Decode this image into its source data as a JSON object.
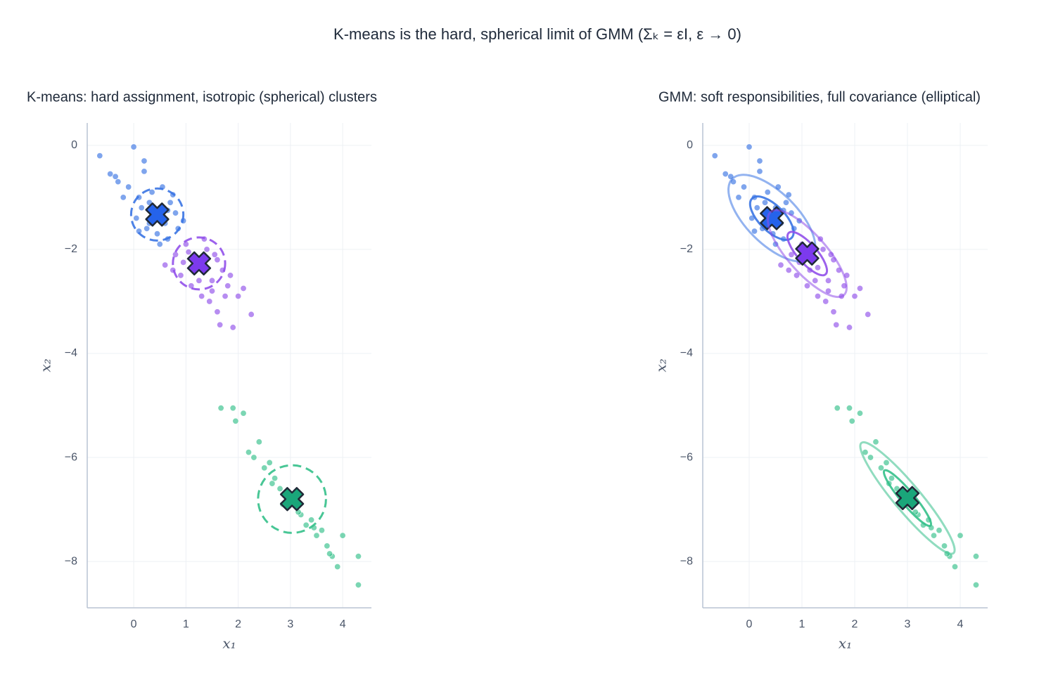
{
  "title": "K-means is the hard, spherical limit of GMM (Σₖ = εI,  ε → 0)",
  "chart_data": [
    {
      "type": "scatter",
      "title": "K-means: hard assignment, isotropic (spherical) clusters",
      "x_label": "x₁",
      "y_label": "x₂",
      "xlim": [
        -0.89,
        4.55
      ],
      "ylim": [
        -8.89,
        0.43
      ],
      "xticks": [
        0,
        1,
        2,
        3,
        4
      ],
      "yticks": [
        {
          "value": -8,
          "label": "−8"
        },
        {
          "value": -6,
          "label": "−6"
        },
        {
          "value": -4,
          "label": "−4"
        },
        {
          "value": -2,
          "label": "−2"
        },
        0
      ],
      "grid": true,
      "series": [
        {
          "color": "#3a74e3",
          "center_color": "#2563eb",
          "center": [
            0.45,
            -1.33
          ],
          "radius": 0.5,
          "x": [
            -0.65,
            -0.45,
            -0.3,
            -0.1,
            0.0,
            0.1,
            0.2,
            0.3,
            0.4,
            0.5,
            0.6,
            0.7,
            0.8,
            -0.2,
            0.05,
            0.25,
            0.45,
            0.65,
            0.85,
            0.35,
            0.15,
            -0.35,
            0.55,
            0.75,
            0.95,
            0.1,
            0.3,
            0.5,
            0.65,
            0.2
          ],
          "y": [
            -0.2,
            -0.55,
            -0.7,
            -0.8,
            -0.03,
            -1.0,
            -0.3,
            -1.1,
            -1.3,
            -1.2,
            -1.5,
            -1.1,
            -1.3,
            -1.0,
            -1.4,
            -1.6,
            -1.7,
            -1.8,
            -1.6,
            -0.9,
            -1.2,
            -0.6,
            -0.8,
            -0.95,
            -1.45,
            -1.65,
            -1.5,
            -1.9,
            -1.25,
            -0.5
          ]
        },
        {
          "color": "#9150ea",
          "center_color": "#7c3aed",
          "center": [
            1.25,
            -2.27
          ],
          "radius": 0.5,
          "x": [
            0.6,
            0.8,
            0.9,
            1.0,
            1.1,
            1.2,
            1.3,
            1.4,
            1.5,
            1.6,
            1.7,
            1.8,
            1.9,
            2.0,
            2.1,
            2.25,
            1.15,
            1.35,
            1.55,
            1.75,
            0.95,
            1.25,
            1.45,
            1.65,
            1.85,
            1.6,
            1.5,
            1.3,
            1.05,
            0.75
          ],
          "y": [
            -2.3,
            -2.1,
            -2.5,
            -1.9,
            -2.7,
            -2.2,
            -2.9,
            -2.0,
            -2.6,
            -3.2,
            -2.4,
            -2.7,
            -3.5,
            -2.9,
            -2.75,
            -3.25,
            -2.4,
            -1.8,
            -2.1,
            -2.9,
            -2.25,
            -2.6,
            -3.0,
            -3.45,
            -2.5,
            -2.2,
            -2.8,
            -2.35,
            -2.05,
            -2.4
          ]
        },
        {
          "color": "#34c08a",
          "center_color": "#1aa67a",
          "center": [
            3.03,
            -6.8
          ],
          "radius": 0.65,
          "x": [
            1.67,
            1.9,
            2.1,
            1.95,
            2.2,
            2.4,
            2.5,
            2.6,
            2.7,
            2.8,
            2.9,
            3.0,
            3.1,
            3.2,
            3.3,
            3.4,
            3.5,
            3.6,
            3.7,
            3.8,
            3.9,
            4.0,
            4.3,
            4.3,
            2.3,
            2.65,
            2.85,
            3.15,
            3.45,
            3.75
          ],
          "y": [
            -5.05,
            -5.05,
            -5.15,
            -5.3,
            -5.9,
            -5.7,
            -6.2,
            -6.1,
            -6.4,
            -6.6,
            -6.7,
            -6.9,
            -6.8,
            -7.1,
            -7.3,
            -7.2,
            -7.5,
            -7.4,
            -7.7,
            -7.9,
            -8.1,
            -7.5,
            -7.9,
            -8.45,
            -6.0,
            -6.5,
            -6.9,
            -7.05,
            -7.35,
            -7.85
          ]
        }
      ]
    },
    {
      "type": "scatter",
      "title": "GMM: soft responsibilities, full covariance (elliptical)",
      "x_label": "x₁",
      "y_label": "x₂",
      "xlim": [
        -0.88,
        4.52
      ],
      "ylim": [
        -8.89,
        0.43
      ],
      "xticks": [
        0,
        1,
        2,
        3,
        4
      ],
      "yticks": [
        {
          "value": -8,
          "label": "−8"
        },
        {
          "value": -6,
          "label": "−6"
        },
        {
          "value": -4,
          "label": "−4"
        },
        {
          "value": -2,
          "label": "−2"
        },
        0
      ],
      "grid": true,
      "series": [
        {
          "color": "#3a74e3",
          "center_color": "#2563eb",
          "center": [
            0.43,
            -1.4
          ],
          "covariance": [
            [
              0.17,
              -0.11
            ],
            [
              -0.11,
              0.17
            ]
          ],
          "x": [
            -0.65,
            -0.45,
            -0.3,
            -0.1,
            0.0,
            0.1,
            0.2,
            0.3,
            0.4,
            0.5,
            0.6,
            0.7,
            0.8,
            -0.2,
            0.05,
            0.25,
            0.45,
            0.65,
            0.85,
            0.35,
            0.15,
            -0.35,
            0.55,
            0.75,
            0.95,
            0.1,
            0.3,
            0.5,
            0.65,
            0.2
          ],
          "y": [
            -0.2,
            -0.55,
            -0.7,
            -0.8,
            -0.03,
            -1.0,
            -0.3,
            -1.1,
            -1.3,
            -1.2,
            -1.5,
            -1.1,
            -1.3,
            -1.0,
            -1.4,
            -1.6,
            -1.7,
            -1.8,
            -1.6,
            -0.9,
            -1.2,
            -0.6,
            -0.8,
            -0.95,
            -1.45,
            -1.65,
            -1.5,
            -1.9,
            -1.25,
            -0.5
          ]
        },
        {
          "color": "#9150ea",
          "center_color": "#7c3aed",
          "center": [
            1.1,
            -2.08
          ],
          "covariance": [
            [
              0.14,
              -0.12
            ],
            [
              -0.12,
              0.17
            ]
          ],
          "x": [
            0.6,
            0.8,
            0.9,
            1.0,
            1.1,
            1.2,
            1.3,
            1.4,
            1.5,
            1.6,
            1.7,
            1.8,
            1.9,
            2.0,
            2.1,
            2.25,
            1.15,
            1.35,
            1.55,
            1.75,
            0.95,
            1.25,
            1.45,
            1.65,
            1.85,
            1.6,
            1.5,
            1.3,
            1.05,
            0.75
          ],
          "y": [
            -2.3,
            -2.1,
            -2.5,
            -1.9,
            -2.7,
            -2.2,
            -2.9,
            -2.0,
            -2.6,
            -3.2,
            -2.4,
            -2.7,
            -3.5,
            -2.9,
            -2.75,
            -3.25,
            -2.4,
            -1.8,
            -2.1,
            -2.9,
            -2.25,
            -2.6,
            -3.0,
            -3.45,
            -2.5,
            -2.2,
            -2.8,
            -2.35,
            -2.05,
            -2.4
          ]
        },
        {
          "color": "#34c08a",
          "center_color": "#1aa67a",
          "center": [
            3.0,
            -6.78
          ],
          "covariance": [
            [
              0.2,
              -0.22
            ],
            [
              -0.22,
              0.28
            ]
          ],
          "x": [
            1.67,
            1.9,
            2.1,
            1.95,
            2.2,
            2.4,
            2.5,
            2.6,
            2.7,
            2.8,
            2.9,
            3.0,
            3.1,
            3.2,
            3.3,
            3.4,
            3.5,
            3.6,
            3.7,
            3.8,
            3.9,
            4.0,
            4.3,
            4.3,
            2.3,
            2.65,
            2.85,
            3.15,
            3.45,
            3.75
          ],
          "y": [
            -5.05,
            -5.05,
            -5.15,
            -5.3,
            -5.9,
            -5.7,
            -6.2,
            -6.1,
            -6.4,
            -6.6,
            -6.7,
            -6.9,
            -6.8,
            -7.1,
            -7.3,
            -7.2,
            -7.5,
            -7.4,
            -7.7,
            -7.9,
            -8.1,
            -7.5,
            -7.9,
            -8.45,
            -6.0,
            -6.5,
            -6.9,
            -7.05,
            -7.35,
            -7.85
          ]
        }
      ]
    }
  ]
}
